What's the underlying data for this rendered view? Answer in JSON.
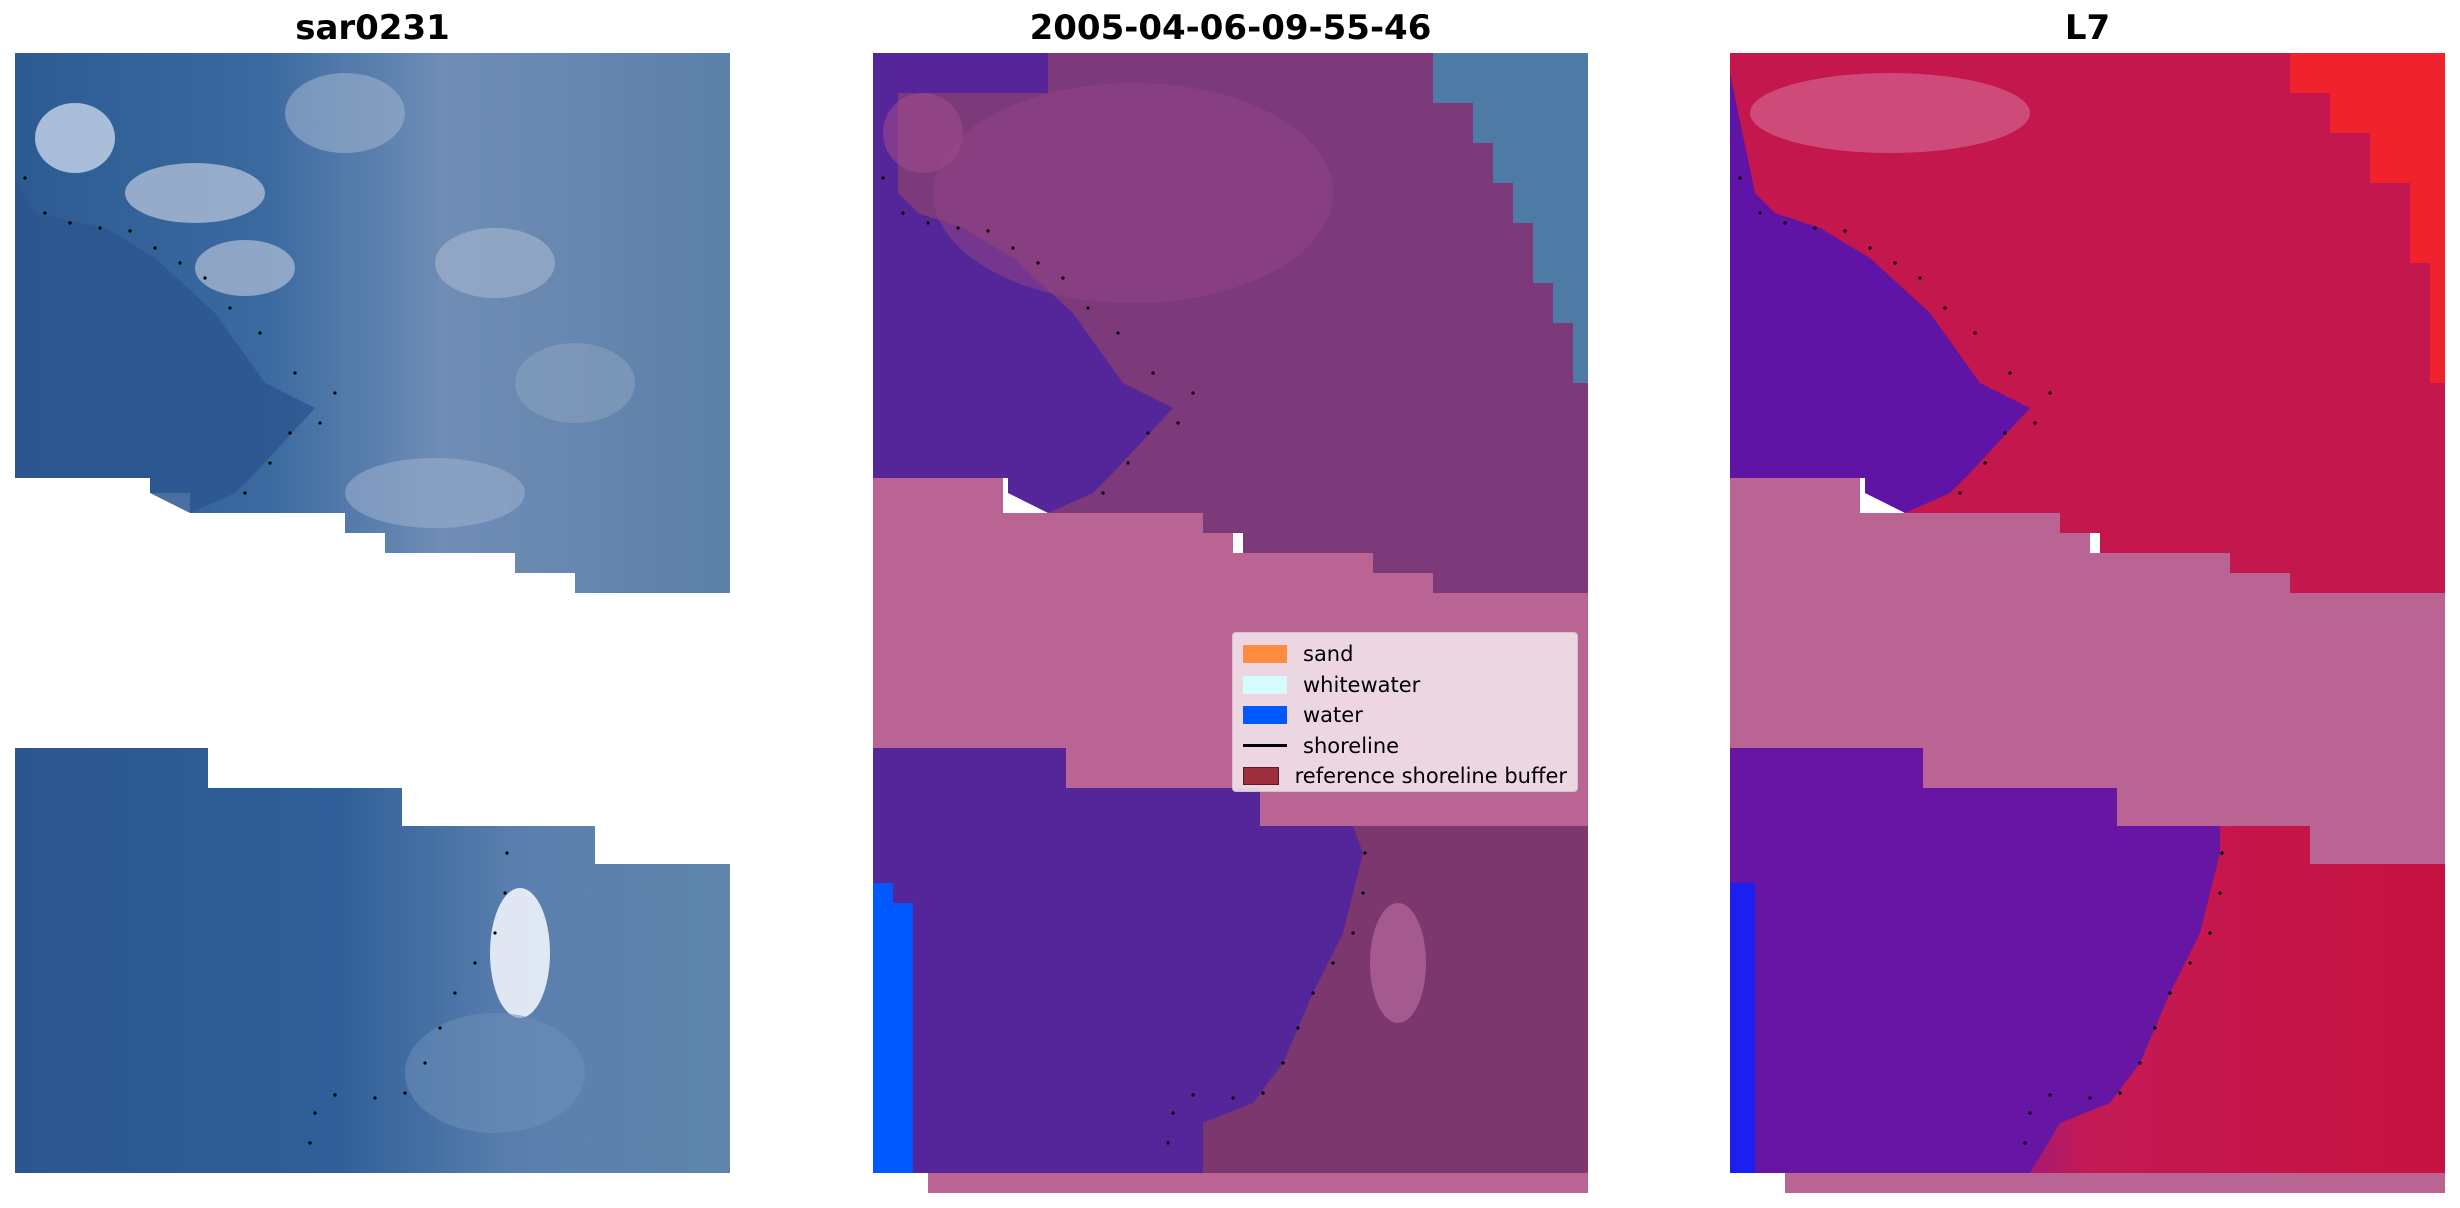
{
  "panels": [
    {
      "title": "sar0231"
    },
    {
      "title": "2005-04-06-09-55-46"
    },
    {
      "title": "L7"
    }
  ],
  "legend": {
    "items": [
      {
        "label": "sand",
        "color": "#ff8c3f",
        "kind": "patch"
      },
      {
        "label": "whitewater",
        "color": "#d6fbfb",
        "kind": "patch"
      },
      {
        "label": "water",
        "color": "#0058ff",
        "kind": "patch"
      },
      {
        "label": "shoreline",
        "color": "#000000",
        "kind": "line"
      },
      {
        "label": "reference shoreline buffer",
        "color": "#9b2f3c",
        "kind": "patch"
      }
    ]
  }
}
